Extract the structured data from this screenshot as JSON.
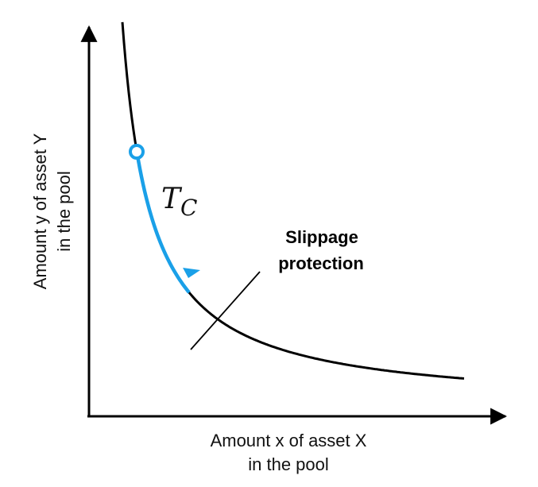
{
  "axes": {
    "x_label_line1": "Amount x of asset X",
    "x_label_line2": "in the pool",
    "y_label_line1": "Amount y of asset Y",
    "y_label_line2": "in the pool"
  },
  "trade": {
    "symbol": "T",
    "subscript": "C",
    "color": "#1aa0e8"
  },
  "annotation": {
    "line1": "Slippage",
    "line2": "protection"
  },
  "colors": {
    "curve": "#000000",
    "axes": "#000000"
  }
}
